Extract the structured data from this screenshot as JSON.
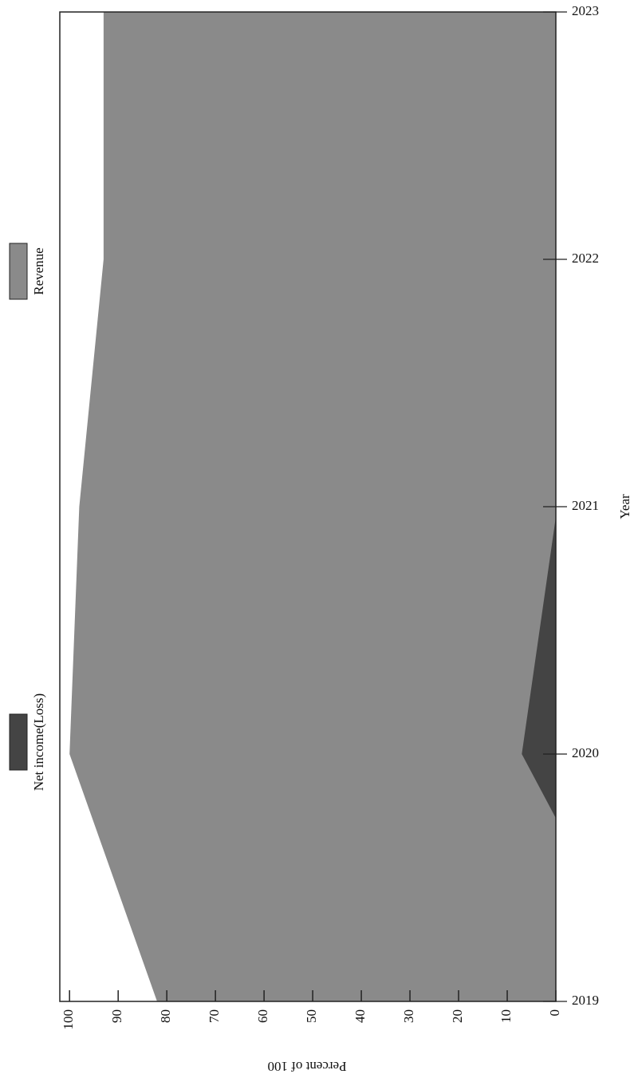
{
  "chart_data": {
    "type": "area",
    "orientation": "rotated",
    "x_label": "Year",
    "y_label": "Percent of 100",
    "categories": [
      "2019",
      "2020",
      "2021",
      "2022",
      "2023"
    ],
    "series": [
      {
        "name": "Revenue",
        "color": "#8a8a8a",
        "values": [
          82,
          100,
          98,
          93,
          93
        ]
      },
      {
        "name": "Net income(Loss)",
        "color": "#444444",
        "values": [
          -20,
          7,
          -0.3,
          null,
          null
        ]
      }
    ],
    "ylim": [
      0,
      102
    ],
    "yticks": [
      0,
      10,
      20,
      30,
      40,
      50,
      60,
      70,
      80,
      90,
      100
    ]
  }
}
